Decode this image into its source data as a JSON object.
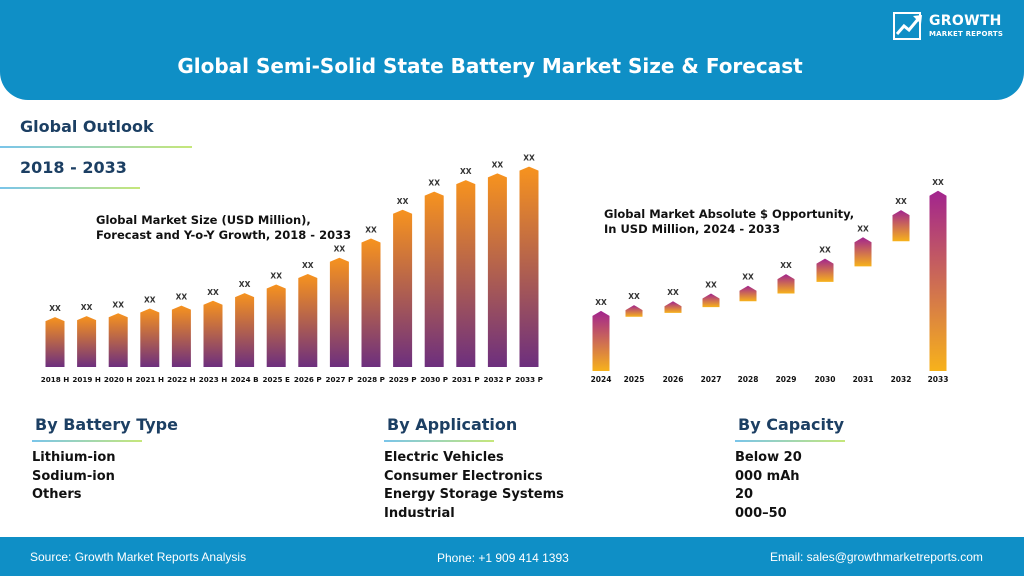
{
  "header": {
    "title": "Global Semi-Solid State Battery Market Size & Forecast",
    "logo_line1": "GROWTH",
    "logo_line2": "MARKET REPORTS"
  },
  "outlook": {
    "label": "Global Outlook",
    "years": "2018 - 2033"
  },
  "chart_data": [
    {
      "type": "bar",
      "title": "Global Market Size (USD Million), Forecast and Y-o-Y Growth, 2018 - 2033",
      "title_lines": [
        "Global Market Size (USD Million),",
        "Forecast and Y-o-Y Growth, 2018 - 2033"
      ],
      "categories": [
        "2018 H",
        "2019 H",
        "2020 H",
        "2021 H",
        "2022 H",
        "2023 H",
        "2024 B",
        "2025 E",
        "2026 P",
        "2027 P",
        "2028 P",
        "2029 P",
        "2030 P",
        "2031 P",
        "2032 P",
        "2033 P"
      ],
      "values": [
        50,
        51,
        54,
        59,
        62,
        67,
        75,
        84,
        95,
        112,
        132,
        162,
        181,
        193,
        200,
        207
      ],
      "data_labels": [
        "XX",
        "XX",
        "XX",
        "XX",
        "XX",
        "XX",
        "XX",
        "XX",
        "XX",
        "XX",
        "XX",
        "XX",
        "XX",
        "XX",
        "XX",
        "XX"
      ],
      "ylim": [
        0,
        215
      ],
      "colors": {
        "top": "#f7931e",
        "bottom": "#6d2f7e"
      }
    },
    {
      "type": "bar",
      "title": "Global Market Absolute $ Opportunity, In USD Million, 2024 - 2033",
      "title_lines": [
        "Global Market Absolute $ Opportunity,",
        "In USD Million, 2024 - 2033"
      ],
      "categories": [
        "2024",
        "2025",
        "2026",
        "2027",
        "2028",
        "2029",
        "2030",
        "2031",
        "2032",
        "2033"
      ],
      "ranges": [
        [
          0,
          60
        ],
        [
          56,
          66
        ],
        [
          60,
          70
        ],
        [
          66,
          78
        ],
        [
          72,
          86
        ],
        [
          80,
          98
        ],
        [
          92,
          114
        ],
        [
          108,
          136
        ],
        [
          134,
          164
        ],
        [
          0,
          184
        ]
      ],
      "data_labels": [
        "XX",
        "XX",
        "XX",
        "XX",
        "XX",
        "XX",
        "XX",
        "XX",
        "XX",
        "XX"
      ],
      "ylim": [
        0,
        190
      ],
      "colors": {
        "top": "#a2248e",
        "bottom": "#f7b21b"
      }
    }
  ],
  "sections": [
    {
      "heading": "By Battery Type",
      "items": [
        "Lithium-ion",
        "Sodium-ion",
        "Others"
      ]
    },
    {
      "heading": "By Application",
      "items": [
        "Electric Vehicles",
        "Consumer Electronics",
        "Energy Storage Systems",
        "Industrial"
      ]
    },
    {
      "heading": "By Capacity",
      "items": [
        "Below 20",
        "000 mAh",
        "20",
        "000–50"
      ]
    }
  ],
  "footer": {
    "source": "Source: Growth Market Reports Analysis",
    "phone": "Phone: +1 909 414 1393",
    "email": "Email: sales@growthmarketreports.com"
  }
}
